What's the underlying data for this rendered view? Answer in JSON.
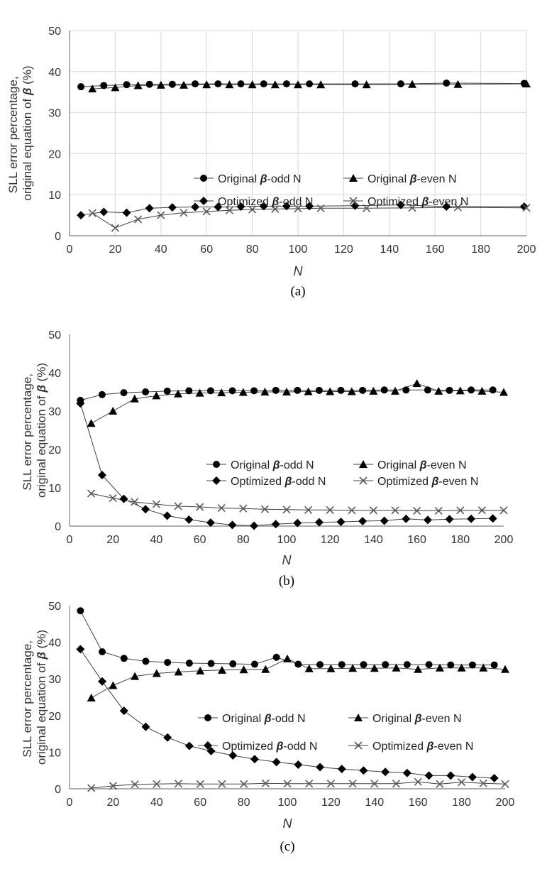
{
  "chart_data": [
    {
      "type": "line",
      "panel_label": "(a)",
      "ylabel_line1": "SLL error percentage,",
      "ylabel_line2_prefix": "original equation of ",
      "ylabel_line2_symbol": "β",
      "ylabel_line2_suffix": " (%)",
      "xlabel": "N",
      "xlim": [
        0,
        200
      ],
      "ylim": [
        0,
        50
      ],
      "xticks": [
        0,
        20,
        40,
        60,
        80,
        100,
        120,
        140,
        160,
        180,
        200
      ],
      "yticks": [
        0,
        10,
        20,
        30,
        40,
        50
      ],
      "grid": true,
      "series": [
        {
          "name": "Original β-odd N",
          "name_prefix": "Original ",
          "name_suffix": "-odd N",
          "marker": "circle",
          "x": [
            5,
            15,
            25,
            35,
            45,
            55,
            65,
            75,
            85,
            95,
            105,
            125,
            145,
            165,
            199
          ],
          "y": [
            36.3,
            36.6,
            36.8,
            36.9,
            36.9,
            37.0,
            37.0,
            37.0,
            37.0,
            37.0,
            37.0,
            37.0,
            37.0,
            37.2,
            37.1
          ]
        },
        {
          "name": "Original β-even N",
          "name_prefix": "Original ",
          "name_suffix": "-even N",
          "marker": "triangle",
          "x": [
            10,
            20,
            30,
            40,
            50,
            60,
            70,
            80,
            90,
            100,
            110,
            130,
            150,
            170,
            200
          ],
          "y": [
            35.8,
            36.1,
            36.6,
            36.7,
            36.7,
            36.8,
            36.8,
            36.8,
            36.8,
            36.8,
            36.8,
            36.8,
            36.9,
            36.9,
            37.0
          ]
        },
        {
          "name": "Optimized β-odd N",
          "name_prefix": "Optimized ",
          "name_suffix": "-odd N",
          "marker": "diamond",
          "x": [
            5,
            15,
            25,
            35,
            45,
            55,
            65,
            75,
            85,
            95,
            105,
            125,
            145,
            165,
            199
          ],
          "y": [
            5.0,
            5.8,
            5.6,
            6.7,
            6.9,
            7.0,
            7.0,
            7.1,
            7.2,
            7.2,
            7.2,
            7.3,
            7.5,
            7.1,
            7.1
          ]
        },
        {
          "name": "Optimized β-even N",
          "name_prefix": "Optimized ",
          "name_suffix": "-even N",
          "marker": "cross",
          "x": [
            10,
            20,
            30,
            40,
            50,
            60,
            70,
            80,
            90,
            100,
            110,
            130,
            150,
            170,
            200
          ],
          "y": [
            5.5,
            1.9,
            4.0,
            5.0,
            5.6,
            5.9,
            6.2,
            6.4,
            6.5,
            6.6,
            6.7,
            6.7,
            6.8,
            6.9,
            6.8
          ]
        }
      ]
    },
    {
      "type": "line",
      "panel_label": "(b)",
      "ylabel_line1": "SLL error percentage,",
      "ylabel_line2_prefix": "original equation of ",
      "ylabel_line2_symbol": "β",
      "ylabel_line2_suffix": " (%)",
      "xlabel": "N",
      "xlim": [
        0,
        200
      ],
      "ylim": [
        0,
        50
      ],
      "xticks": [
        0,
        20,
        40,
        60,
        80,
        100,
        120,
        140,
        160,
        180,
        200
      ],
      "yticks": [
        0,
        10,
        20,
        30,
        40,
        50
      ],
      "grid": false,
      "series": [
        {
          "name": "Original β-odd N",
          "name_prefix": "Original ",
          "name_suffix": "-odd N",
          "marker": "circle",
          "x": [
            5,
            15,
            25,
            35,
            45,
            55,
            65,
            75,
            85,
            95,
            105,
            115,
            125,
            135,
            145,
            155,
            165,
            175,
            185,
            195
          ],
          "y": [
            32.8,
            34.3,
            34.8,
            35.0,
            35.2,
            35.3,
            35.3,
            35.3,
            35.3,
            35.4,
            35.4,
            35.4,
            35.4,
            35.4,
            35.5,
            35.5,
            35.5,
            35.4,
            35.5,
            35.5
          ]
        },
        {
          "name": "Original β-even N",
          "name_prefix": "Original ",
          "name_suffix": "-even N",
          "marker": "triangle",
          "x": [
            10,
            20,
            30,
            40,
            50,
            60,
            70,
            80,
            90,
            100,
            110,
            120,
            130,
            140,
            150,
            160,
            170,
            180,
            190,
            200
          ],
          "y": [
            26.8,
            30.0,
            33.2,
            34.0,
            34.5,
            34.7,
            34.8,
            34.9,
            35.0,
            35.0,
            35.1,
            35.1,
            35.1,
            35.2,
            35.2,
            37.2,
            35.2,
            35.3,
            35.2,
            34.9
          ]
        },
        {
          "name": "Optimized β-odd N",
          "name_prefix": "Optimized ",
          "name_suffix": "-odd N",
          "marker": "diamond",
          "x": [
            5,
            15,
            25,
            35,
            45,
            55,
            65,
            75,
            85,
            95,
            105,
            115,
            125,
            135,
            145,
            155,
            165,
            175,
            185,
            195
          ],
          "y": [
            32.0,
            13.3,
            7.1,
            4.4,
            2.7,
            1.7,
            0.9,
            0.3,
            0.1,
            0.5,
            0.8,
            1.0,
            1.1,
            1.3,
            1.4,
            1.9,
            1.6,
            1.8,
            1.9,
            2.0
          ]
        },
        {
          "name": "Optimized β-even N",
          "name_prefix": "Optimized ",
          "name_suffix": "-even N",
          "marker": "cross",
          "x": [
            10,
            20,
            30,
            40,
            50,
            60,
            70,
            80,
            90,
            100,
            110,
            120,
            130,
            140,
            150,
            160,
            170,
            180,
            190,
            200
          ],
          "y": [
            8.5,
            7.3,
            6.3,
            5.7,
            5.2,
            5.0,
            4.7,
            4.6,
            4.4,
            4.3,
            4.2,
            4.2,
            4.1,
            4.1,
            4.1,
            4.0,
            4.0,
            4.1,
            4.1,
            4.1
          ]
        }
      ]
    },
    {
      "type": "line",
      "panel_label": "(c)",
      "ylabel_line1": "SLL error percentage,",
      "ylabel_line2_prefix": "original equation of ",
      "ylabel_line2_symbol": "β",
      "ylabel_line2_suffix": " (%)",
      "xlabel": "N",
      "xlim": [
        0,
        200
      ],
      "ylim": [
        0,
        50
      ],
      "xticks": [
        0,
        20,
        40,
        60,
        80,
        100,
        120,
        140,
        160,
        180,
        200
      ],
      "yticks": [
        0,
        10,
        20,
        30,
        40,
        50
      ],
      "grid": false,
      "series": [
        {
          "name": "Original β-odd N",
          "name_prefix": "Original ",
          "name_suffix": "-odd N",
          "marker": "circle",
          "x": [
            5,
            15,
            25,
            35,
            45,
            55,
            65,
            75,
            85,
            95,
            105,
            115,
            125,
            135,
            145,
            155,
            165,
            175,
            185,
            195
          ],
          "y": [
            48.6,
            37.4,
            35.6,
            34.8,
            34.5,
            34.3,
            34.2,
            34.1,
            34.0,
            35.9,
            34.0,
            33.9,
            33.9,
            33.9,
            33.9,
            33.9,
            33.9,
            33.8,
            33.8,
            33.8
          ]
        },
        {
          "name": "Original β-even N",
          "name_prefix": "Original ",
          "name_suffix": "-even N",
          "marker": "triangle",
          "x": [
            10,
            20,
            30,
            40,
            50,
            60,
            70,
            80,
            90,
            100,
            110,
            120,
            130,
            140,
            150,
            160,
            170,
            180,
            190,
            200
          ],
          "y": [
            24.8,
            28.2,
            30.7,
            31.5,
            31.9,
            32.2,
            32.4,
            32.5,
            32.6,
            35.5,
            32.8,
            32.8,
            32.9,
            32.9,
            33.0,
            32.6,
            33.0,
            33.0,
            33.0,
            32.6
          ]
        },
        {
          "name": "Optimized β-odd N",
          "name_prefix": "Optimized ",
          "name_suffix": "-odd N",
          "marker": "diamond",
          "x": [
            5,
            15,
            25,
            35,
            45,
            55,
            65,
            75,
            85,
            95,
            105,
            115,
            125,
            135,
            145,
            155,
            165,
            175,
            185,
            195
          ],
          "y": [
            38.1,
            29.3,
            21.3,
            16.9,
            14.0,
            11.7,
            10.3,
            9.1,
            8.1,
            7.3,
            6.6,
            5.9,
            5.4,
            5.0,
            4.6,
            4.3,
            3.6,
            3.6,
            3.2,
            2.9
          ]
        },
        {
          "name": "Optimized β-even N",
          "name_prefix": "Optimized ",
          "name_suffix": "-even N",
          "marker": "cross",
          "x": [
            10,
            20,
            30,
            40,
            50,
            60,
            70,
            80,
            90,
            100,
            110,
            120,
            130,
            140,
            150,
            160,
            170,
            180,
            190,
            200
          ],
          "y": [
            0.2,
            0.8,
            1.2,
            1.3,
            1.4,
            1.3,
            1.3,
            1.3,
            1.5,
            1.4,
            1.4,
            1.4,
            1.4,
            1.4,
            1.4,
            1.9,
            1.3,
            1.8,
            1.5,
            1.3
          ]
        }
      ]
    }
  ],
  "colors": {
    "axis": "#7f7f7f",
    "grid": "#d9d9d9",
    "series_line": "#404040",
    "marker": "#000000",
    "cross_marker": "#5a5a5a"
  }
}
